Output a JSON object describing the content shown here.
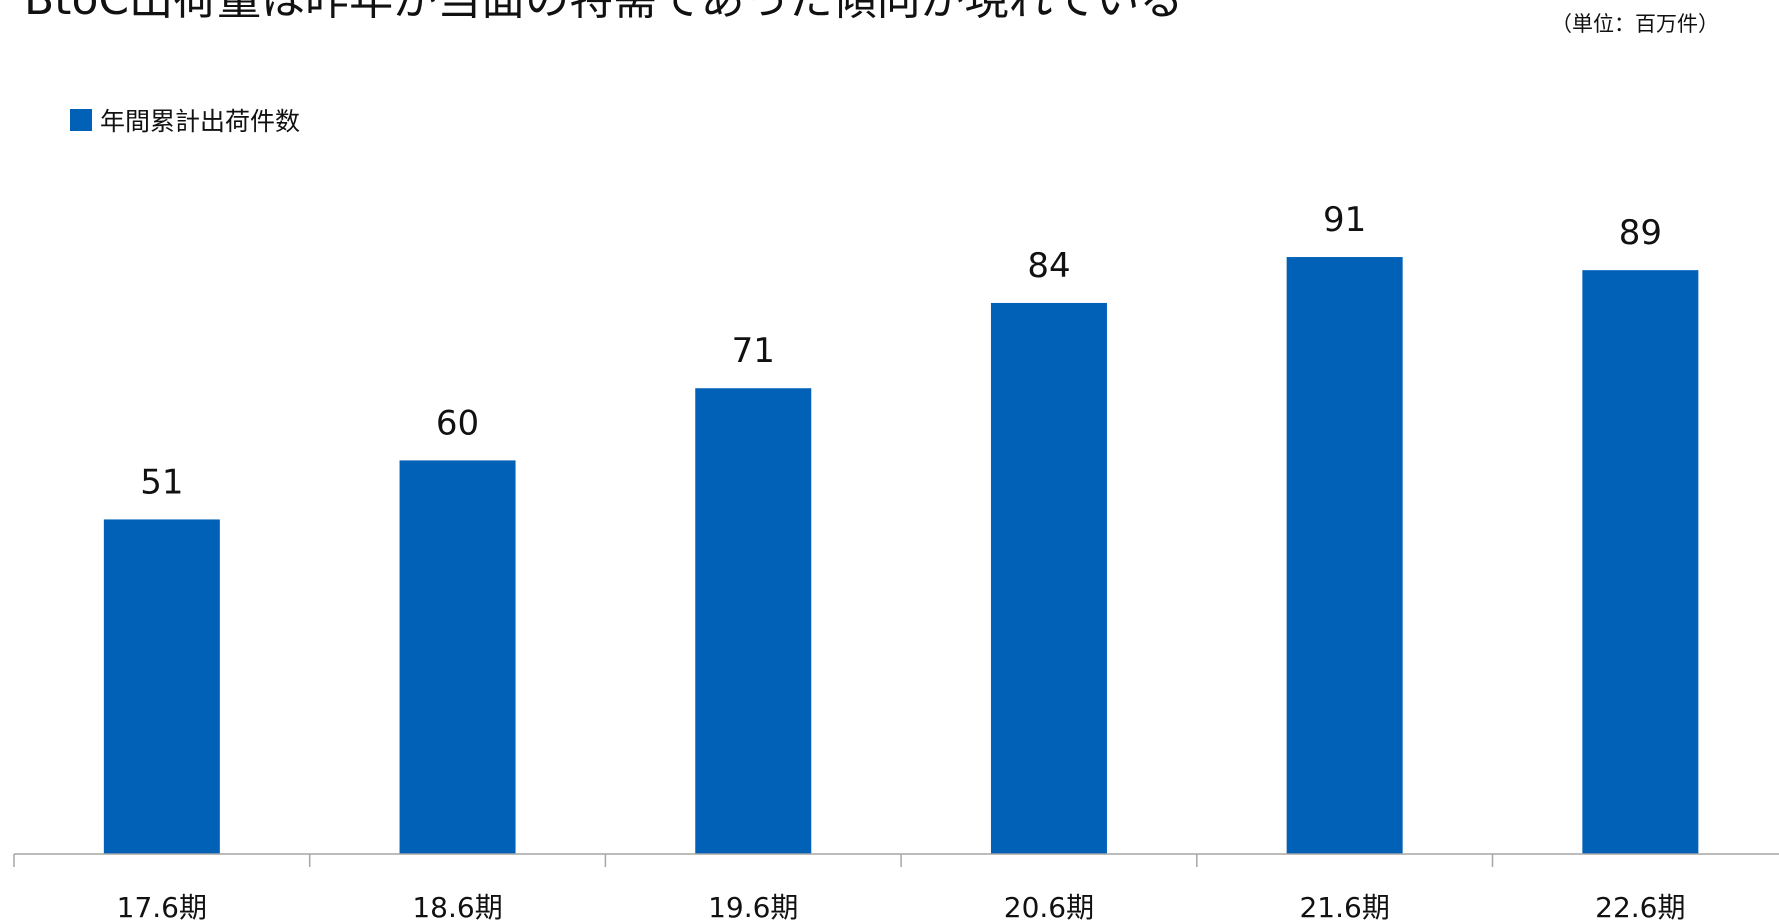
{
  "headline": "BtoC出荷量は昨年が当面の特需であった傾向が現れている",
  "unit_note": "（単位：百万件）",
  "colors": {
    "accent": "#0061B6",
    "axis": "#A6A6A6"
  },
  "chart_data": {
    "type": "bar",
    "categories": [
      "17.6期",
      "18.6期",
      "19.6期",
      "20.6期",
      "21.6期",
      "22.6期"
    ],
    "series": [
      {
        "name": "年間累計出荷件数",
        "values": [
          51,
          60,
          71,
          84,
          91,
          89
        ]
      }
    ],
    "ylim": [
      0,
      100
    ],
    "grid": false,
    "legend_position": "top-left",
    "xlabel": "",
    "ylabel": ""
  }
}
